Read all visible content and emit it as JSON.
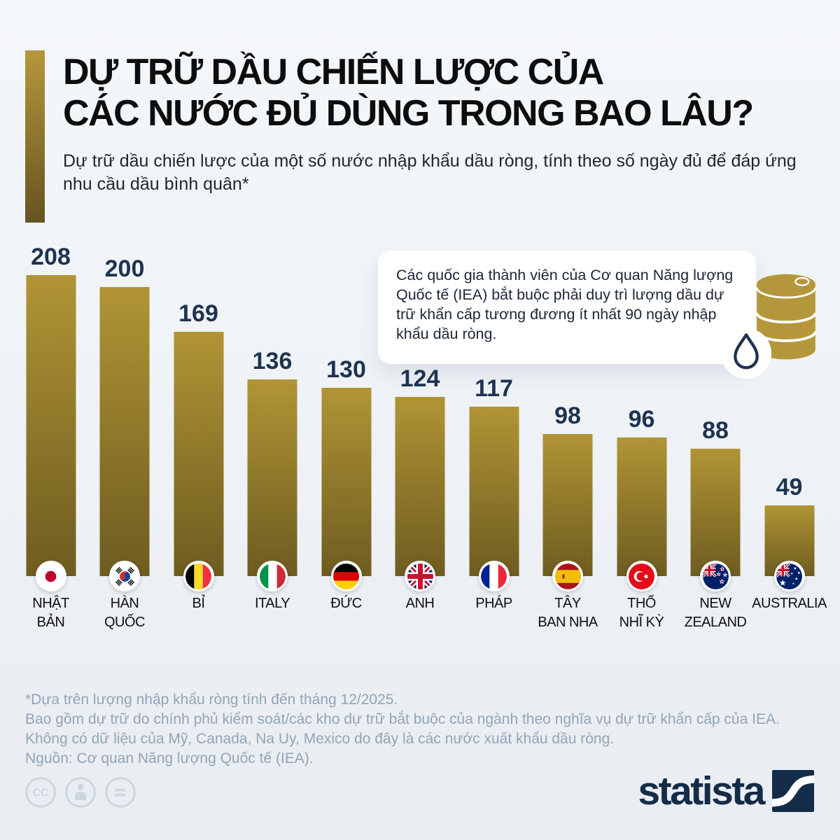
{
  "header": {
    "title_line1": "DỰ TRỮ DẦU CHIẾN LƯỢC CỦA",
    "title_line2": "CÁC NƯỚC ĐỦ DÙNG TRONG BAO LÂU?",
    "subtitle": "Dự trữ dầu chiến lược của một số nước nhập khẩu dầu ròng, tính theo số ngày đủ để đáp ứng nhu cầu dầu bình quân*",
    "accent_color_top": "#b5983c",
    "accent_color_bottom": "#655320"
  },
  "info_box": {
    "text": "Các quốc gia thành viên của Cơ quan Năng lượng Quốc tế (IEA) bắt buộc phải duy trì lượng dầu dự trữ khẩn cấp tương đương ít nhất 90 ngày nhập khẩu dầu ròng.",
    "icon": "oil-barrel-with-drop-icon",
    "icon_colors": {
      "barrel": "#b5973b",
      "drop_outline": "#1d3350",
      "drop_bg": "#ffffff"
    }
  },
  "chart_data": {
    "type": "bar",
    "unit": "ngày",
    "categories": [
      "NHẬT BẢN",
      "HÀN QUỐC",
      "BỈ",
      "ITALY",
      "ĐỨC",
      "ANH",
      "PHÁP",
      "TÂY BAN NHA",
      "THỔ NHĨ KỲ",
      "NEW ZEALAND",
      "AUSTRALIA"
    ],
    "values": [
      208,
      200,
      169,
      136,
      130,
      124,
      117,
      98,
      96,
      88,
      49
    ],
    "ylim": [
      0,
      215
    ],
    "grid": false,
    "legend": false,
    "bar_gradient_top": "#b19435",
    "bar_gradient_bottom": "#6e5c20",
    "value_label_color": "#1d3350",
    "bars": [
      {
        "country": "NHẬT BẢN",
        "label_lines": [
          "NHẬT",
          "BẢN"
        ],
        "value": 208,
        "flag": "japan",
        "flag_icon": "japan-flag-icon"
      },
      {
        "country": "HÀN QUỐC",
        "label_lines": [
          "HÀN",
          "QUỐC"
        ],
        "value": 200,
        "flag": "south-korea",
        "flag_icon": "south-korea-flag-icon"
      },
      {
        "country": "BỈ",
        "label_lines": [
          "BỈ"
        ],
        "value": 169,
        "flag": "belgium",
        "flag_icon": "belgium-flag-icon"
      },
      {
        "country": "ITALY",
        "label_lines": [
          "ITALY"
        ],
        "value": 136,
        "flag": "italy",
        "flag_icon": "italy-flag-icon"
      },
      {
        "country": "ĐỨC",
        "label_lines": [
          "ĐỨC"
        ],
        "value": 130,
        "flag": "germany",
        "flag_icon": "germany-flag-icon"
      },
      {
        "country": "ANH",
        "label_lines": [
          "ANH"
        ],
        "value": 124,
        "flag": "uk",
        "flag_icon": "uk-flag-icon"
      },
      {
        "country": "PHÁP",
        "label_lines": [
          "PHÁP"
        ],
        "value": 117,
        "flag": "france",
        "flag_icon": "france-flag-icon"
      },
      {
        "country": "TÂY BAN NHA",
        "label_lines": [
          "TÂY",
          "BAN NHA"
        ],
        "value": 98,
        "flag": "spain",
        "flag_icon": "spain-flag-icon"
      },
      {
        "country": "THỔ NHĨ KỲ",
        "label_lines": [
          "THỔ",
          "NHĨ KỲ"
        ],
        "value": 96,
        "flag": "turkey",
        "flag_icon": "turkey-flag-icon"
      },
      {
        "country": "NEW ZEALAND",
        "label_lines": [
          "NEW",
          "ZEALAND"
        ],
        "value": 88,
        "flag": "new-zealand",
        "flag_icon": "new-zealand-flag-icon"
      },
      {
        "country": "AUSTRALIA",
        "label_lines": [
          "AUSTRALIA"
        ],
        "value": 49,
        "flag": "australia",
        "flag_icon": "australia-flag-icon"
      }
    ]
  },
  "footer": {
    "notes": [
      "*Dựa trên lượng nhập khẩu ròng tính đến tháng 12/2025.",
      "Bao gồm dự trữ do chính phủ kiểm soát/các kho dự trữ bắt buộc của ngành theo nghĩa vụ dự trữ khẩn cấp của IEA.",
      "Không có dữ liệu của Mỹ, Canada, Na Uy, Mexico do đây là các nước xuất khẩu dầu ròng.",
      "Nguồn: Cơ quan Năng lượng Quốc tế (IEA)."
    ],
    "text_color": "#92a4b6",
    "license_icons": [
      "cc-icon",
      "attribution-icon",
      "no-derivatives-icon"
    ],
    "brand": "statista",
    "brand_color": "#142c47"
  }
}
